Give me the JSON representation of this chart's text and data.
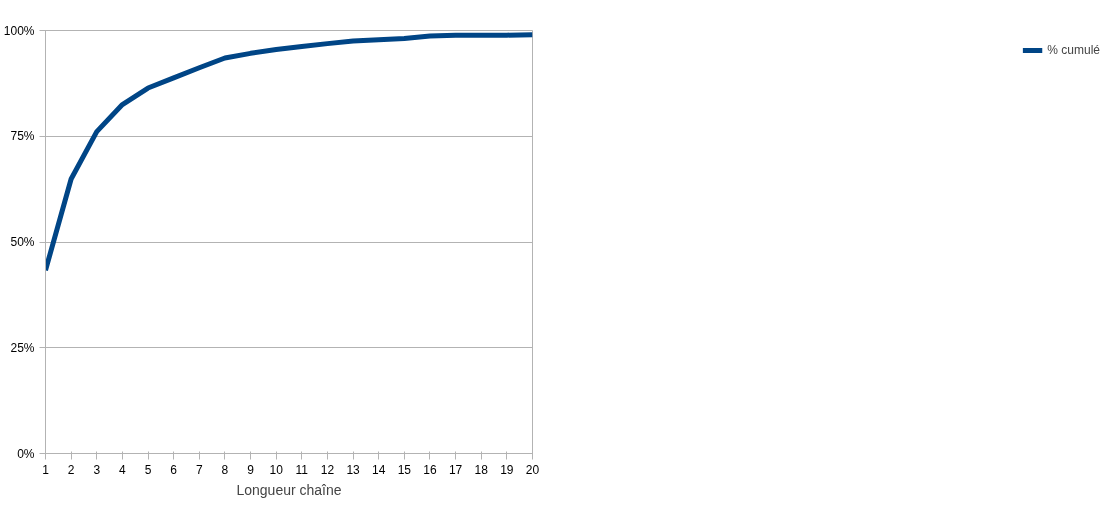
{
  "chart_data": {
    "type": "line",
    "xlabel": "Longueur chaîne",
    "x": [
      1,
      2,
      3,
      4,
      5,
      6,
      7,
      8,
      9,
      10,
      11,
      12,
      13,
      14,
      15,
      16,
      17,
      18,
      19,
      20
    ],
    "series": [
      {
        "name": "% cumulé",
        "color": "#004586",
        "values": [
          43.3,
          64.9,
          76.1,
          82.5,
          86.4,
          88.8,
          91.2,
          93.5,
          94.6,
          95.5,
          96.2,
          96.9,
          97.5,
          97.8,
          98.1,
          98.7,
          98.9,
          98.9,
          98.9,
          99.0
        ]
      }
    ],
    "xlim": [
      1,
      20
    ],
    "xticks": [
      1,
      2,
      3,
      4,
      5,
      6,
      7,
      8,
      9,
      10,
      11,
      12,
      13,
      14,
      15,
      16,
      17,
      18,
      19,
      20
    ],
    "ylim": [
      0,
      100
    ],
    "yticks": [
      {
        "value": 0,
        "label": "0%"
      },
      {
        "value": 25,
        "label": "25%"
      },
      {
        "value": 50,
        "label": "50%"
      },
      {
        "value": 75,
        "label": "75%"
      },
      {
        "value": 100,
        "label": "100%"
      }
    ],
    "grid": "y",
    "legend": "right",
    "marker": "none",
    "line_style": "solid"
  }
}
